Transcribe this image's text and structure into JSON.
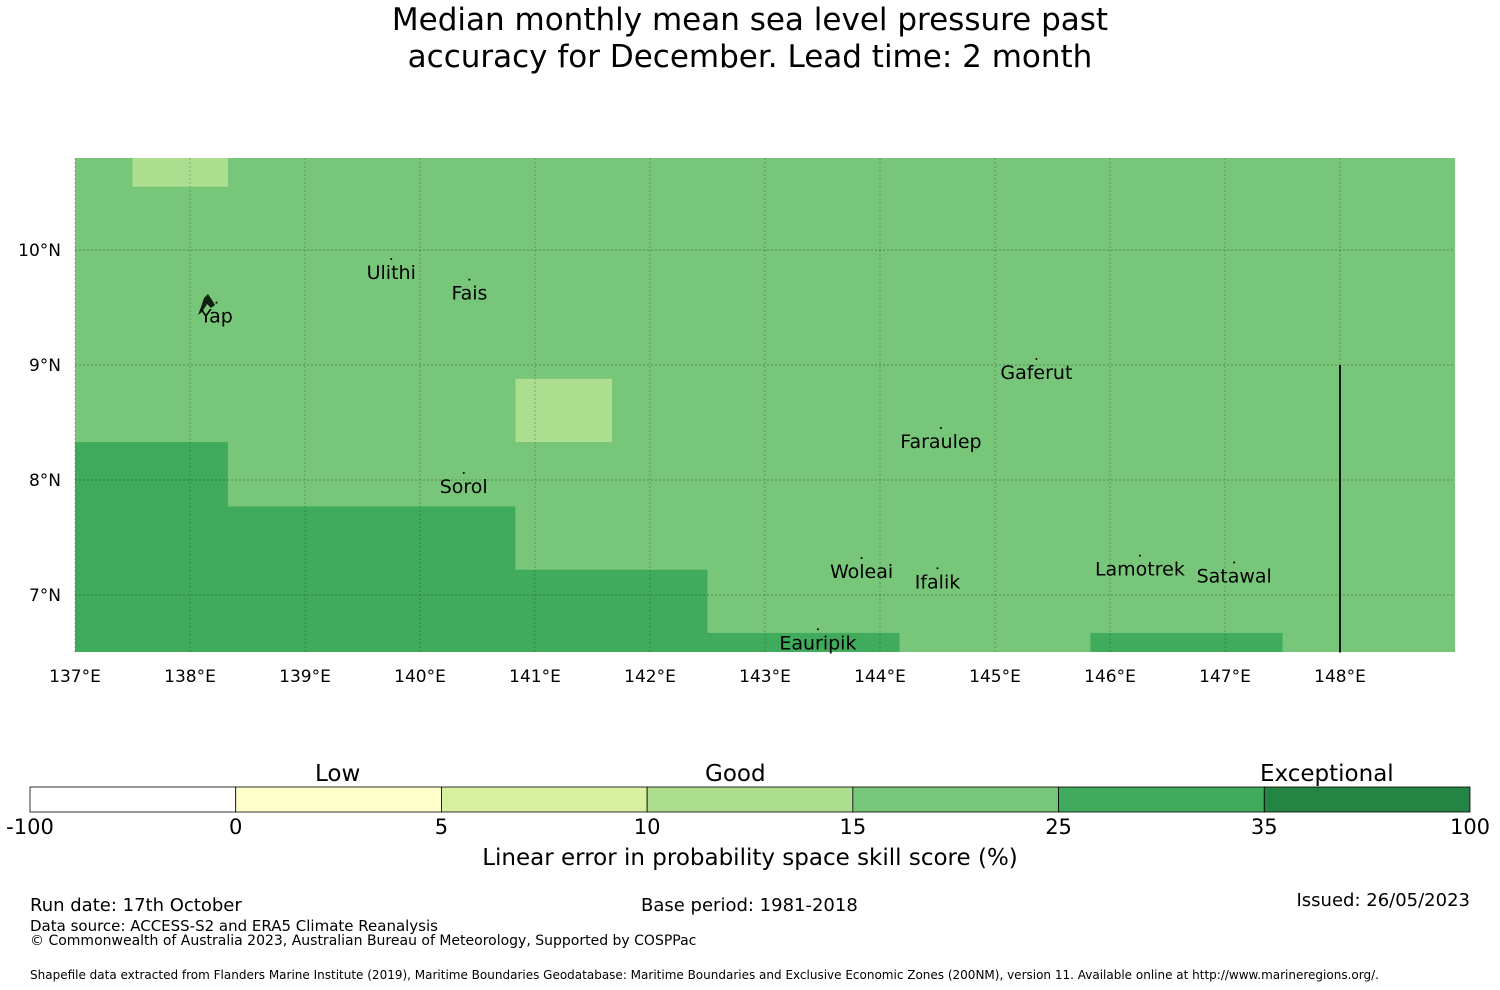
{
  "title": {
    "line1": "Median monthly mean sea level pressure past",
    "line2": "accuracy for December. Lead time: 2 month"
  },
  "map": {
    "lon_range": [
      137,
      149
    ],
    "lat_range": [
      6.5,
      10.8
    ],
    "lon_ticks": [
      {
        "value": 137,
        "label": "137°E"
      },
      {
        "value": 138,
        "label": "138°E"
      },
      {
        "value": 139,
        "label": "139°E"
      },
      {
        "value": 140,
        "label": "140°E"
      },
      {
        "value": 141,
        "label": "141°E"
      },
      {
        "value": 142,
        "label": "142°E"
      },
      {
        "value": 143,
        "label": "143°E"
      },
      {
        "value": 144,
        "label": "144°E"
      },
      {
        "value": 145,
        "label": "145°E"
      },
      {
        "value": 146,
        "label": "146°E"
      },
      {
        "value": 147,
        "label": "147°E"
      },
      {
        "value": 148,
        "label": "148°E"
      }
    ],
    "lat_ticks": [
      {
        "value": 10,
        "label": "10°N"
      },
      {
        "value": 9,
        "label": "9°N"
      },
      {
        "value": 8,
        "label": "8°N"
      },
      {
        "value": 7,
        "label": "7°N"
      }
    ],
    "background_color": "#78c679",
    "regions": [
      {
        "lon": [
          137.5,
          138.33
        ],
        "lat": [
          10.55,
          10.8
        ],
        "color": "#addd8e",
        "category": "10-15"
      },
      {
        "lon": [
          140.83,
          141.67
        ],
        "lat": [
          8.33,
          8.88
        ],
        "color": "#addd8e",
        "category": "10-15"
      },
      {
        "lon": [
          137.0,
          138.33
        ],
        "lat": [
          6.5,
          8.33
        ],
        "color": "#41ab5d",
        "category": "25-35"
      },
      {
        "lon": [
          138.33,
          140.83
        ],
        "lat": [
          6.5,
          7.77
        ],
        "color": "#41ab5d",
        "category": "25-35"
      },
      {
        "lon": [
          140.83,
          142.5
        ],
        "lat": [
          6.5,
          7.22
        ],
        "color": "#41ab5d",
        "category": "25-35"
      },
      {
        "lon": [
          142.5,
          144.17
        ],
        "lat": [
          6.5,
          6.67
        ],
        "color": "#41ab5d",
        "category": "25-35"
      },
      {
        "lon": [
          145.83,
          147.5
        ],
        "lat": [
          6.5,
          6.67
        ],
        "color": "#41ab5d",
        "category": "25-35"
      }
    ],
    "boundary_line": {
      "lon": 148,
      "lat": [
        6.5,
        9.0
      ]
    },
    "places": [
      {
        "name": "Ulithi",
        "lon": 139.75,
        "lat": 9.87
      },
      {
        "name": "Fais",
        "lon": 140.43,
        "lat": 9.69
      },
      {
        "name": "Yap",
        "lon": 138.23,
        "lat": 9.49
      },
      {
        "name": "Gaferut",
        "lon": 145.36,
        "lat": 9.0
      },
      {
        "name": "Faraulep",
        "lon": 144.53,
        "lat": 8.4
      },
      {
        "name": "Sorol",
        "lon": 140.38,
        "lat": 8.01
      },
      {
        "name": "Woleai",
        "lon": 143.84,
        "lat": 7.27
      },
      {
        "name": "Ifalik",
        "lon": 144.5,
        "lat": 7.18
      },
      {
        "name": "Lamotrek",
        "lon": 146.26,
        "lat": 7.29
      },
      {
        "name": "Satawal",
        "lon": 147.08,
        "lat": 7.23
      },
      {
        "name": "Eauripik",
        "lon": 143.46,
        "lat": 6.65
      }
    ]
  },
  "colorbar": {
    "categories": [
      {
        "label": "Low",
        "position": "center-left"
      },
      {
        "label": "Good",
        "position": "center"
      },
      {
        "label": "Exceptional",
        "position": "right"
      }
    ],
    "bins": [
      {
        "from": "-100",
        "to": "0",
        "color": "#ffffff"
      },
      {
        "from": "0",
        "to": "5",
        "color": "#ffffcc"
      },
      {
        "from": "5",
        "to": "10",
        "color": "#d9f0a3"
      },
      {
        "from": "10",
        "to": "15",
        "color": "#addd8e"
      },
      {
        "from": "15",
        "to": "25",
        "color": "#78c679"
      },
      {
        "from": "25",
        "to": "35",
        "color": "#41ab5d"
      },
      {
        "from": "35",
        "to": "100",
        "color": "#238443"
      }
    ],
    "tick_labels": [
      "-100",
      "0",
      "5",
      "10",
      "15",
      "25",
      "35",
      "100"
    ],
    "title": "Linear error in probability space skill score (%)"
  },
  "footer": {
    "run_date": "Run date: 17th October",
    "base_period": "Base period: 1981-2018",
    "issued": "Issued: 26/05/2023",
    "data_source": "Data source: ACCESS-S2 and ERA5 Climate Reanalysis",
    "copyright": "© Commonwealth of Australia 2023, Australian Bureau of Meteorology, Supported by COSPPac",
    "shapefile_credit": "Shapefile data extracted from Flanders Marine Institute (2019), Maritime Boundaries Geodatabase: Maritime Boundaries and Exclusive Economic Zones (200NM), version 11. Available online at http://www.marineregions.org/."
  }
}
